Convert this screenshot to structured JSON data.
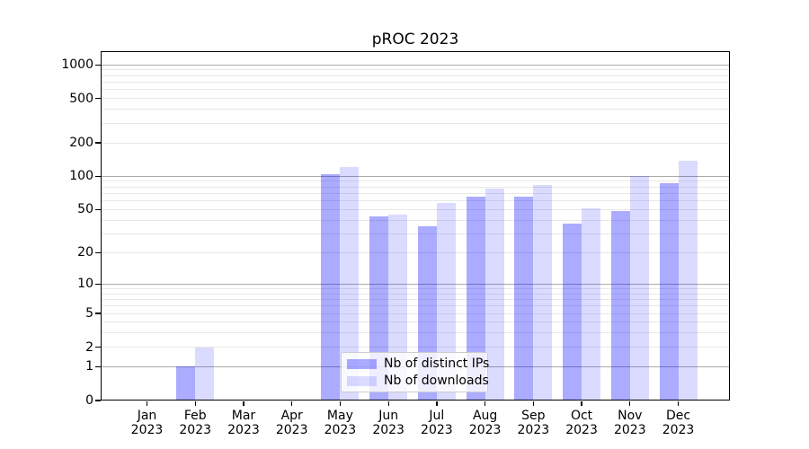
{
  "chart_data": {
    "type": "bar",
    "title": "pROC 2023",
    "xlabel": "",
    "ylabel": "",
    "categories": [
      {
        "month": "Jan",
        "year": "2023"
      },
      {
        "month": "Feb",
        "year": "2023"
      },
      {
        "month": "Mar",
        "year": "2023"
      },
      {
        "month": "Apr",
        "year": "2023"
      },
      {
        "month": "May",
        "year": "2023"
      },
      {
        "month": "Jun",
        "year": "2023"
      },
      {
        "month": "Jul",
        "year": "2023"
      },
      {
        "month": "Aug",
        "year": "2023"
      },
      {
        "month": "Sep",
        "year": "2023"
      },
      {
        "month": "Oct",
        "year": "2023"
      },
      {
        "month": "Nov",
        "year": "2023"
      },
      {
        "month": "Dec",
        "year": "2023"
      }
    ],
    "series": [
      {
        "name": "Nb of distinct IPs",
        "color": "rgba(0,0,255,0.33)",
        "values": [
          0,
          1,
          0,
          0,
          104,
          43,
          35,
          66,
          65,
          37,
          48,
          86
        ]
      },
      {
        "name": "Nb of downloads",
        "color": "rgba(0,0,255,0.14)",
        "values": [
          0,
          2,
          0,
          0,
          122,
          45,
          57,
          78,
          84,
          51,
          100,
          138
        ]
      }
    ],
    "y_axis": {
      "scale": "log1p",
      "ymin": 0,
      "ymax": 1325,
      "ticks": [
        {
          "v": 0,
          "label": "0"
        },
        {
          "v": 1,
          "label": "1"
        },
        {
          "v": 2,
          "label": "2"
        },
        {
          "v": 5,
          "label": "5"
        },
        {
          "v": 10,
          "label": "10"
        },
        {
          "v": 20,
          "label": "20"
        },
        {
          "v": 50,
          "label": "50"
        },
        {
          "v": 100,
          "label": "100"
        },
        {
          "v": 200,
          "label": "200"
        },
        {
          "v": 500,
          "label": "500"
        },
        {
          "v": 1000,
          "label": "1000"
        }
      ],
      "major_gridlines": [
        1,
        10,
        100,
        1000
      ],
      "minor_gridlines": [
        2,
        3,
        4,
        5,
        6,
        7,
        8,
        9,
        20,
        30,
        40,
        50,
        60,
        70,
        80,
        90,
        200,
        300,
        400,
        500,
        600,
        700,
        800,
        900
      ]
    },
    "legend": {
      "position": "lower-center",
      "items": [
        "Nb of distinct IPs",
        "Nb of downloads"
      ]
    },
    "grid": true,
    "colors": {
      "background": "#ffffff",
      "spine": "#000000",
      "major_grid": "#ababab",
      "minor_grid": "#e8e8e8",
      "bar_distinct_ips": "rgba(0,0,255,0.33)",
      "bar_downloads": "rgba(0,0,255,0.14)",
      "text": "#000000"
    }
  }
}
